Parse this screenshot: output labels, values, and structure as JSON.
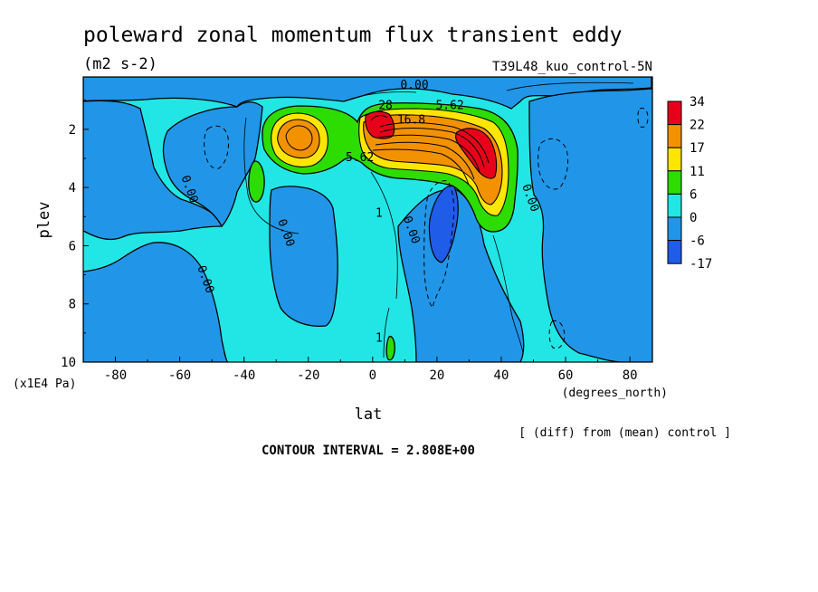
{
  "chart_data": {
    "type": "contour",
    "title": "poleward zonal momentum flux transient eddy",
    "units": "(m2 s-2)",
    "experiment": "T39L48_kuo_control-5N",
    "xlabel": "lat",
    "x_units": "(degrees_north)",
    "ylabel": "plev",
    "y_units": "(x1E4 Pa)",
    "xlim": [
      -90,
      87
    ],
    "ylim": [
      10,
      0.2
    ],
    "x_ticks": [
      "-80",
      "-60",
      "-40",
      "-20",
      "0",
      "20",
      "40",
      "60",
      "80"
    ],
    "y_ticks": [
      "2",
      "4",
      "6",
      "8",
      "10"
    ],
    "diff_note": "[ (diff) from (mean) control ]",
    "contour_interval_text": "CONTOUR INTERVAL = 2.808E+00",
    "colorbar": {
      "labels": [
        "34",
        "22",
        "17",
        "11",
        "6",
        "0",
        "-6",
        "-17"
      ],
      "colors": [
        "#e8001a",
        "#f39200",
        "#ffe600",
        "#2ddc00",
        "#22e6e6",
        "#2196e8",
        "#1f5ce8"
      ]
    },
    "contour_labels": [
      {
        "text": "0.00",
        "lat": 13,
        "p": 0.6
      },
      {
        "text": "5.62",
        "lat": 24,
        "p": 1.3
      },
      {
        "text": "16.8",
        "lat": 12,
        "p": 1.8
      },
      {
        "text": "28",
        "lat": 4,
        "p": 1.3
      },
      {
        "text": "5.62",
        "lat": -4,
        "p": 3.1
      },
      {
        "text": "0.00",
        "lat": -58,
        "p": 4.1
      },
      {
        "text": "0.00",
        "lat": -28,
        "p": 5.6
      },
      {
        "text": "0.00",
        "lat": 11,
        "p": 5.5
      },
      {
        "text": "0.00",
        "lat": 48,
        "p": 4.4
      },
      {
        "text": "0.00",
        "lat": -53,
        "p": 7.2
      },
      {
        "text": "1",
        "lat": 2,
        "p": 5.0
      },
      {
        "text": "1",
        "lat": 2,
        "p": 9.3
      }
    ]
  }
}
